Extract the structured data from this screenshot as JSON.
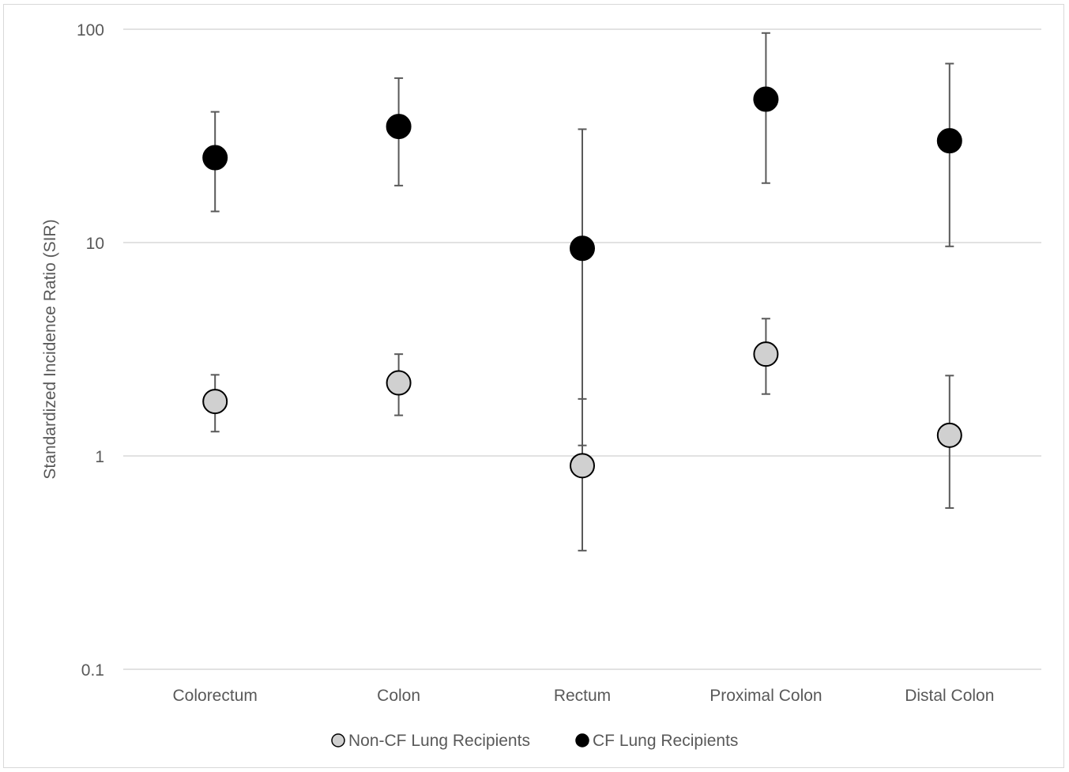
{
  "chart_data": {
    "type": "scatter",
    "y_scale": "log",
    "ylim": [
      0.1,
      100
    ],
    "yticks": [
      {
        "value": 100,
        "label": "100"
      },
      {
        "value": 10,
        "label": "10"
      },
      {
        "value": 1,
        "label": "1"
      },
      {
        "value": 0.1,
        "label": "0.1"
      }
    ],
    "ylabel": "Standardized Incidence Ratio (SIR)",
    "xlabel": "",
    "title": "",
    "categories": [
      "Colorectum",
      "Colon",
      "Rectum",
      "Proximal Colon",
      "Distal Colon"
    ],
    "grid": "horizontal",
    "legend_position": "bottom",
    "series": [
      {
        "name": "Non-CF Lung Recipients",
        "color": "#d0d0d0",
        "values": [
          1.8,
          2.2,
          0.9,
          3.0,
          1.25
        ],
        "error_low": [
          1.3,
          1.55,
          0.36,
          1.95,
          0.57
        ],
        "error_high": [
          2.4,
          3.0,
          1.85,
          4.4,
          2.38
        ]
      },
      {
        "name": "CF Lung Recipients",
        "color": "#000000",
        "values": [
          25,
          35,
          9.4,
          47,
          30
        ],
        "error_low": [
          14,
          18.5,
          1.12,
          19,
          9.6
        ],
        "error_high": [
          41,
          59,
          34,
          96,
          69
        ]
      }
    ]
  }
}
